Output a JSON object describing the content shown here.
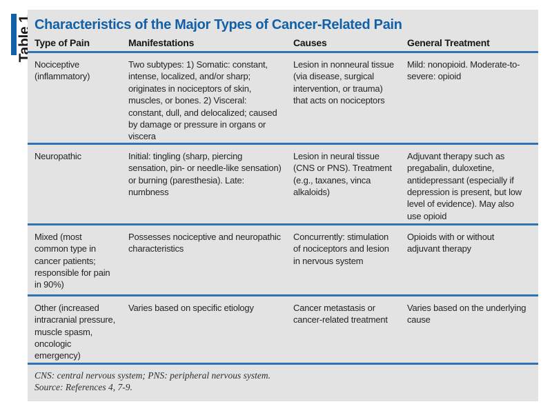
{
  "figure": {
    "label": "Table 1",
    "title": "Characteristics of the Major Types of Cancer-Related Pain"
  },
  "table": {
    "columns": [
      "Type of Pain",
      "Manifestations",
      "Causes",
      "General Treatment"
    ],
    "rows": [
      {
        "type": "Nociceptive (inflammatory)",
        "manifestations": "Two subtypes: 1) Somatic: constant, intense, localized, and/or sharp; originates in nociceptors of skin, muscles, or bones. 2) Visceral: constant, dull, and delocalized; caused by damage or pressure in organs or viscera",
        "causes": "Lesion in nonneural tissue (via disease, surgical intervention, or trauma) that acts on nociceptors",
        "treatment": "Mild: nonopioid. Moderate-to-severe: opioid"
      },
      {
        "type": "Neuropathic",
        "manifestations": "Initial: tingling (sharp, piercing sensation, pin- or needle-like sensation) or burning (paresthesia). Late: numbness",
        "causes": "Lesion in neural tissue (CNS or PNS). Treatment (e.g., taxanes, vinca alkaloids)",
        "treatment": "Adjuvant therapy such as pregabalin, duloxetine, antidepressant (especially if depression is present, but low level of evidence). May also use opioid"
      },
      {
        "type": "Mixed (most common type in cancer patients; responsible for pain in 90%)",
        "manifestations": "Possesses nociceptive and neuropathic characteristics",
        "causes": "Concurrently: stimulation of nociceptors and lesion in nervous system",
        "treatment": "Opioids with or without adjuvant therapy"
      },
      {
        "type": "Other (increased intracranial pressure, muscle spasm, oncologic emergency)",
        "manifestations": "Varies based on specific etiology",
        "causes": "Cancer metastasis or cancer-related treatment",
        "treatment": "Varies based on the underlying cause"
      }
    ],
    "footnotes": [
      "CNS: central nervous system; PNS: peripheral nervous system.",
      "Source: References 4, 7-9."
    ]
  },
  "colors": {
    "accent_blue": "#1261a8",
    "rule_blue": "#2e72b2",
    "table_background": "#e3e3e3",
    "body_text": "#242424"
  }
}
